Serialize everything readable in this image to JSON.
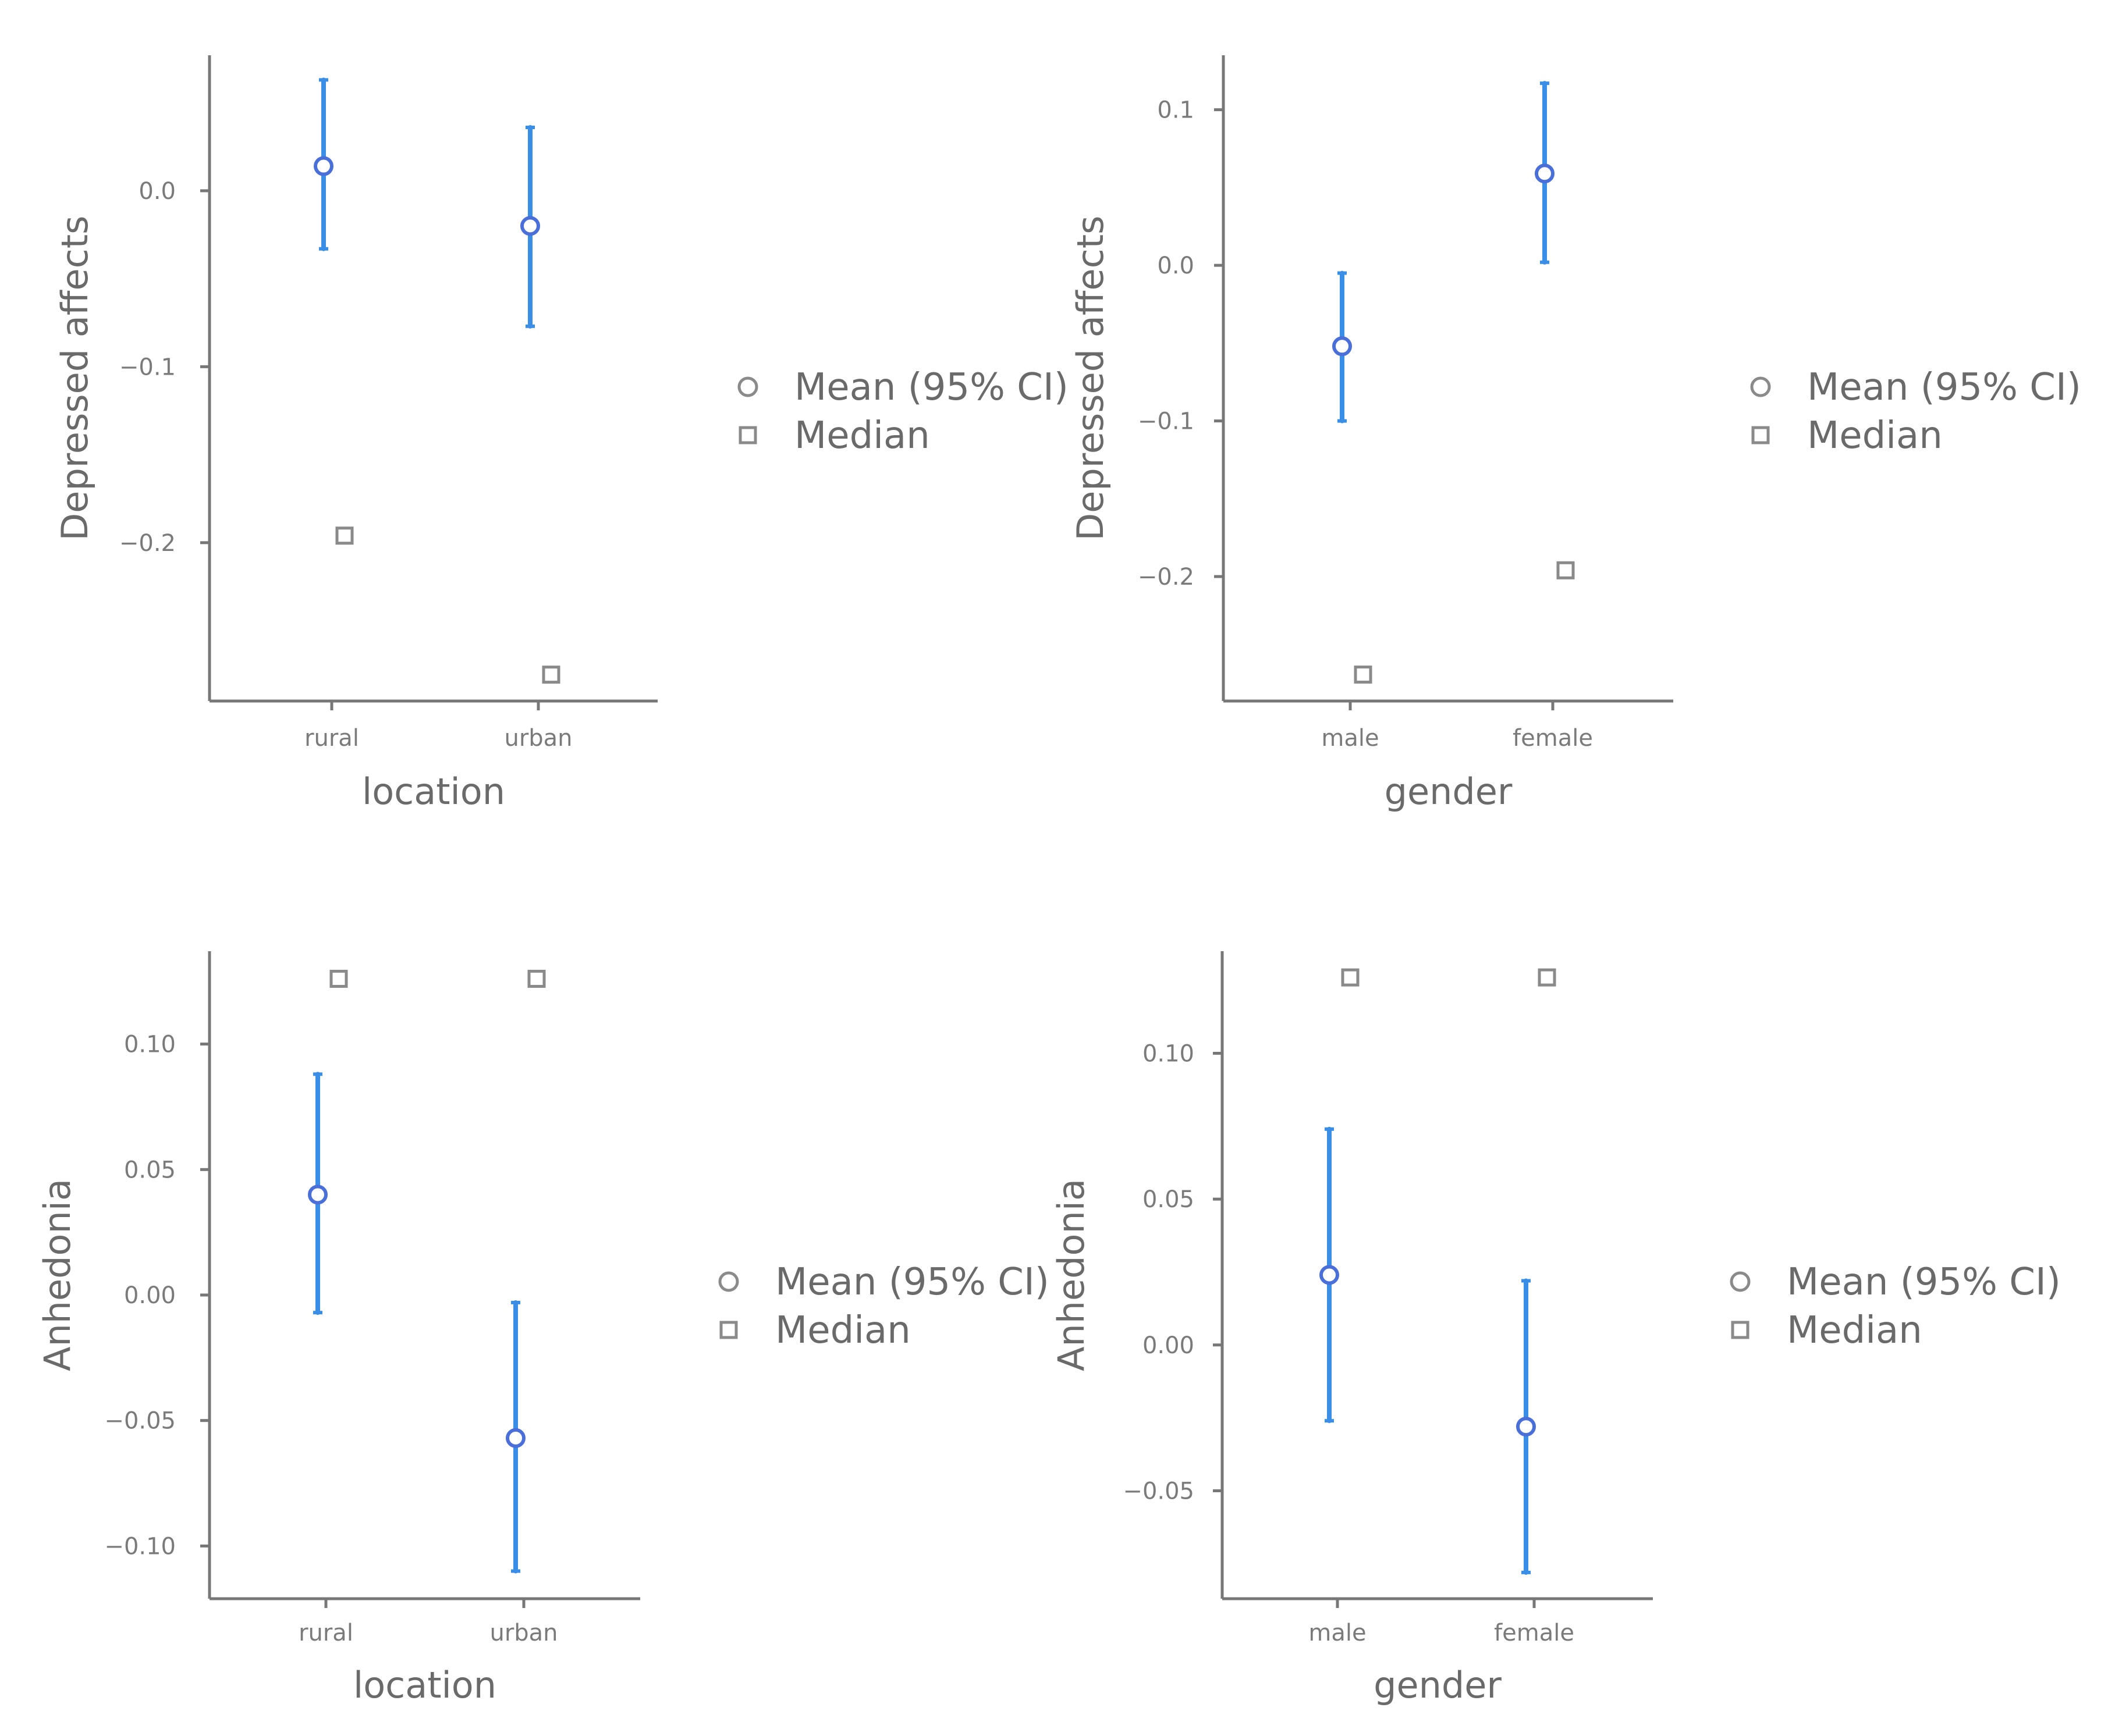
{
  "legend": {
    "mean_label": "Mean (95% CI)",
    "median_label": "Median",
    "mean_color": "#4a6fd8",
    "ci_color": "#3a8ee6",
    "median_color": "#8a8a8a"
  },
  "chart_data": [
    {
      "type": "scatter",
      "title": "",
      "xlabel": "location",
      "ylabel": "Depressed affects",
      "categories": [
        "rural",
        "urban"
      ],
      "ylim": [
        -0.29,
        0.077
      ],
      "yticks": [
        0.0,
        -0.1,
        -0.2
      ],
      "ytick_labels": [
        "0.0",
        "−0.1",
        "−0.2"
      ],
      "series": [
        {
          "name": "Mean (95% CI)",
          "values": [
            0.014,
            -0.02
          ],
          "ci_low": [
            -0.033,
            -0.077
          ],
          "ci_high": [
            0.063,
            0.036
          ]
        },
        {
          "name": "Median",
          "values": [
            -0.196,
            -0.275
          ]
        }
      ],
      "grid": false,
      "legend_position": "right"
    },
    {
      "type": "scatter",
      "title": "",
      "xlabel": "gender",
      "ylabel": "Depressed affects",
      "categories": [
        "male",
        "female"
      ],
      "ylim": [
        -0.28,
        0.135
      ],
      "yticks": [
        0.1,
        0.0,
        -0.1,
        -0.2
      ],
      "ytick_labels": [
        "0.1",
        "0.0",
        "−0.1",
        "−0.2"
      ],
      "series": [
        {
          "name": "Mean (95% CI)",
          "values": [
            -0.052,
            0.059
          ],
          "ci_low": [
            -0.1,
            0.002
          ],
          "ci_high": [
            -0.005,
            0.117
          ]
        },
        {
          "name": "Median",
          "values": [
            -0.263,
            -0.196
          ]
        }
      ],
      "grid": false,
      "legend_position": "right"
    },
    {
      "type": "scatter",
      "title": "",
      "xlabel": "location",
      "ylabel": "Anhedonia",
      "categories": [
        "rural",
        "urban"
      ],
      "ylim": [
        -0.121,
        0.137
      ],
      "yticks": [
        0.1,
        0.05,
        0.0,
        -0.05,
        -0.1
      ],
      "ytick_labels": [
        "0.10",
        "0.05",
        "0.00",
        "−0.05",
        "−0.10"
      ],
      "series": [
        {
          "name": "Mean (95% CI)",
          "values": [
            0.04,
            -0.057
          ],
          "ci_low": [
            -0.007,
            -0.11
          ],
          "ci_high": [
            0.088,
            -0.003
          ]
        },
        {
          "name": "Median",
          "values": [
            0.126,
            0.126
          ]
        }
      ],
      "grid": false,
      "legend_position": "right"
    },
    {
      "type": "scatter",
      "title": "",
      "xlabel": "gender",
      "ylabel": "Anhedonia",
      "categories": [
        "male",
        "female"
      ],
      "ylim": [
        -0.087,
        0.135
      ],
      "yticks": [
        0.1,
        0.05,
        0.0,
        -0.05
      ],
      "ytick_labels": [
        "0.10",
        "0.05",
        "0.00",
        "−0.05"
      ],
      "series": [
        {
          "name": "Mean (95% CI)",
          "values": [
            0.024,
            -0.028
          ],
          "ci_low": [
            -0.026,
            -0.078
          ],
          "ci_high": [
            0.074,
            0.022
          ]
        },
        {
          "name": "Median",
          "values": [
            0.126,
            0.126
          ]
        }
      ],
      "grid": false,
      "legend_position": "right"
    }
  ]
}
